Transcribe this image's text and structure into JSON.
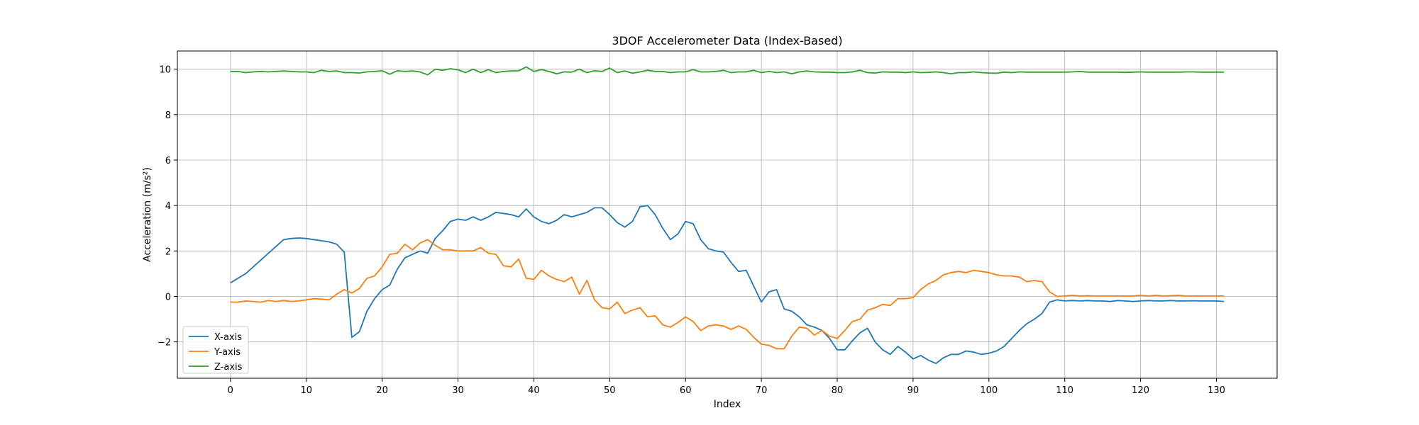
{
  "chart_data": {
    "type": "line",
    "title": "3DOF Accelerometer Data (Index-Based)",
    "xlabel": "Index",
    "ylabel": "Acceleration (m/s²)",
    "xlim": [
      -7,
      138
    ],
    "ylim": [
      -3.6,
      10.8
    ],
    "xticks": [
      0,
      10,
      20,
      30,
      40,
      50,
      60,
      70,
      80,
      90,
      100,
      110,
      120,
      130
    ],
    "yticks": [
      -2,
      0,
      2,
      4,
      6,
      8,
      10
    ],
    "grid": true,
    "legend_position": "lower-left",
    "x_start": 0,
    "x_step": 1,
    "series": [
      {
        "name": "X-axis",
        "color": "#1f77b4",
        "values": [
          0.6,
          0.8,
          1.0,
          1.3,
          1.6,
          1.9,
          2.2,
          2.5,
          2.55,
          2.57,
          2.55,
          2.5,
          2.45,
          2.4,
          2.3,
          1.95,
          -1.8,
          -1.55,
          -0.65,
          -0.1,
          0.3,
          0.5,
          1.2,
          1.7,
          1.85,
          2.0,
          1.9,
          2.55,
          2.9,
          3.3,
          3.4,
          3.35,
          3.5,
          3.35,
          3.5,
          3.7,
          3.65,
          3.6,
          3.5,
          3.85,
          3.5,
          3.3,
          3.2,
          3.35,
          3.6,
          3.5,
          3.6,
          3.7,
          3.9,
          3.9,
          3.6,
          3.25,
          3.05,
          3.3,
          3.95,
          4.0,
          3.6,
          3.0,
          2.5,
          2.75,
          3.3,
          3.2,
          2.5,
          2.1,
          2.0,
          1.95,
          1.5,
          1.1,
          1.15,
          0.45,
          -0.25,
          0.2,
          0.3,
          -0.55,
          -0.65,
          -0.9,
          -1.25,
          -1.35,
          -1.5,
          -1.85,
          -2.35,
          -2.35,
          -1.95,
          -1.6,
          -1.4,
          -2.0,
          -2.35,
          -2.55,
          -2.2,
          -2.45,
          -2.75,
          -2.6,
          -2.8,
          -2.95,
          -2.7,
          -2.55,
          -2.55,
          -2.4,
          -2.45,
          -2.55,
          -2.5,
          -2.4,
          -2.2,
          -1.85,
          -1.5,
          -1.2,
          -1.0,
          -0.75,
          -0.25,
          -0.15,
          -0.2,
          -0.18,
          -0.2,
          -0.18,
          -0.2,
          -0.2,
          -0.22,
          -0.18,
          -0.2,
          -0.22,
          -0.2,
          -0.18,
          -0.2,
          -0.2,
          -0.18,
          -0.2,
          -0.2,
          -0.19,
          -0.2,
          -0.2,
          -0.2,
          -0.22
        ]
      },
      {
        "name": "Y-axis",
        "color": "#ff7f0e",
        "values": [
          -0.25,
          -0.25,
          -0.2,
          -0.22,
          -0.25,
          -0.18,
          -0.22,
          -0.18,
          -0.22,
          -0.2,
          -0.15,
          -0.1,
          -0.12,
          -0.15,
          0.1,
          0.3,
          0.15,
          0.35,
          0.8,
          0.9,
          1.3,
          1.85,
          1.9,
          2.3,
          2.05,
          2.35,
          2.5,
          2.25,
          2.05,
          2.05,
          2.0,
          2.0,
          2.0,
          2.15,
          1.9,
          1.85,
          1.35,
          1.3,
          1.65,
          0.8,
          0.75,
          1.15,
          0.9,
          0.75,
          0.65,
          0.85,
          0.1,
          0.7,
          -0.15,
          -0.5,
          -0.55,
          -0.25,
          -0.75,
          -0.6,
          -0.5,
          -0.9,
          -0.85,
          -1.25,
          -1.35,
          -1.15,
          -0.9,
          -1.1,
          -1.5,
          -1.3,
          -1.25,
          -1.3,
          -1.45,
          -1.3,
          -1.45,
          -1.8,
          -2.1,
          -2.15,
          -2.3,
          -2.3,
          -1.75,
          -1.35,
          -1.4,
          -1.7,
          -1.5,
          -1.75,
          -1.85,
          -1.5,
          -1.1,
          -1.0,
          -0.6,
          -0.5,
          -0.35,
          -0.4,
          -0.1,
          -0.1,
          -0.05,
          0.3,
          0.55,
          0.7,
          0.95,
          1.05,
          1.1,
          1.05,
          1.15,
          1.1,
          1.05,
          0.95,
          0.9,
          0.9,
          0.85,
          0.65,
          0.7,
          0.65,
          0.2,
          0.0,
          0.02,
          0.05,
          0.02,
          0.03,
          0.02,
          0.02,
          0.02,
          0.02,
          0.02,
          0.02,
          0.05,
          0.02,
          0.05,
          0.02,
          0.03,
          0.05,
          0.02,
          0.02,
          0.02,
          0.02,
          0.02,
          0.02
        ]
      },
      {
        "name": "Z-axis",
        "color": "#2ca02c",
        "values": [
          9.9,
          9.9,
          9.85,
          9.88,
          9.9,
          9.88,
          9.9,
          9.92,
          9.9,
          9.88,
          9.88,
          9.85,
          9.95,
          9.9,
          9.92,
          9.85,
          9.85,
          9.83,
          9.88,
          9.9,
          9.93,
          9.78,
          9.93,
          9.9,
          9.92,
          9.88,
          9.75,
          10.0,
          9.95,
          10.02,
          9.97,
          9.85,
          10.0,
          9.85,
          9.98,
          9.85,
          9.9,
          9.92,
          9.93,
          10.1,
          9.9,
          9.98,
          9.9,
          9.8,
          9.88,
          9.87,
          10.0,
          9.85,
          9.93,
          9.9,
          10.05,
          9.85,
          9.92,
          9.82,
          9.88,
          9.95,
          9.9,
          9.9,
          9.85,
          9.88,
          9.88,
          9.98,
          9.88,
          9.88,
          9.9,
          9.95,
          9.85,
          9.88,
          9.88,
          9.95,
          9.85,
          9.9,
          9.85,
          9.88,
          9.8,
          9.88,
          9.92,
          9.88,
          9.87,
          9.87,
          9.85,
          9.85,
          9.88,
          9.95,
          9.85,
          9.83,
          9.88,
          9.87,
          9.87,
          9.85,
          9.88,
          9.85,
          9.86,
          9.88,
          9.85,
          9.8,
          9.85,
          9.85,
          9.88,
          9.85,
          9.83,
          9.82,
          9.87,
          9.85,
          9.88,
          9.87,
          9.87,
          9.87,
          9.87,
          9.87,
          9.87,
          9.88,
          9.9,
          9.87,
          9.87,
          9.87,
          9.87,
          9.87,
          9.86,
          9.87,
          9.88,
          9.87,
          9.87,
          9.87,
          9.87,
          9.87,
          9.88,
          9.88,
          9.87,
          9.87,
          9.87,
          9.87
        ]
      }
    ]
  }
}
